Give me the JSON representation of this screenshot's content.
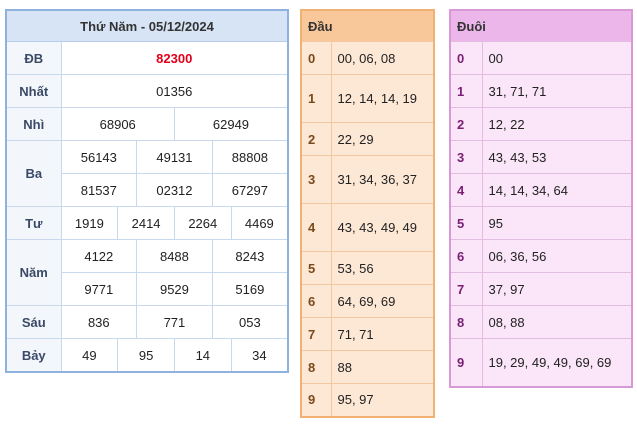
{
  "results": {
    "title": "Thứ Năm - 05/12/2024",
    "rows": [
      {
        "label": "ĐB",
        "lines": [
          [
            "82300"
          ]
        ]
      },
      {
        "label": "Nhất",
        "lines": [
          [
            "01356"
          ]
        ]
      },
      {
        "label": "Nhì",
        "lines": [
          [
            "68906",
            "62949"
          ]
        ]
      },
      {
        "label": "Ba",
        "lines": [
          [
            "56143",
            "49131",
            "88808"
          ],
          [
            "81537",
            "02312",
            "67297"
          ]
        ]
      },
      {
        "label": "Tư",
        "lines": [
          [
            "1919",
            "2414",
            "2264",
            "4469"
          ]
        ]
      },
      {
        "label": "Năm",
        "lines": [
          [
            "4122",
            "8488",
            "8243"
          ],
          [
            "9771",
            "9529",
            "5169"
          ]
        ]
      },
      {
        "label": "Sáu",
        "lines": [
          [
            "836",
            "771",
            "053"
          ]
        ]
      },
      {
        "label": "Bảy",
        "lines": [
          [
            "49",
            "95",
            "14",
            "34"
          ]
        ]
      }
    ]
  },
  "dau": {
    "header": "Đầu",
    "rows": [
      {
        "idx": "0",
        "val": "00, 06, 08"
      },
      {
        "idx": "1",
        "val": "12, 14, 14, 19"
      },
      {
        "idx": "2",
        "val": "22, 29"
      },
      {
        "idx": "3",
        "val": "31, 34, 36, 37"
      },
      {
        "idx": "4",
        "val": "43, 43, 49, 49"
      },
      {
        "idx": "5",
        "val": "53, 56"
      },
      {
        "idx": "6",
        "val": "64, 69, 69"
      },
      {
        "idx": "7",
        "val": "71, 71"
      },
      {
        "idx": "8",
        "val": "88"
      },
      {
        "idx": "9",
        "val": "95, 97"
      }
    ]
  },
  "duoi": {
    "header": "Đuôi",
    "rows": [
      {
        "idx": "0",
        "val": "00"
      },
      {
        "idx": "1",
        "val": "31, 71, 71"
      },
      {
        "idx": "2",
        "val": "12, 22"
      },
      {
        "idx": "3",
        "val": "43, 43, 53"
      },
      {
        "idx": "4",
        "val": "14, 14, 34, 64"
      },
      {
        "idx": "5",
        "val": "95"
      },
      {
        "idx": "6",
        "val": "06, 36, 56"
      },
      {
        "idx": "7",
        "val": "37, 97"
      },
      {
        "idx": "8",
        "val": "08, 88"
      },
      {
        "idx": "9",
        "val": "19, 29, 49, 49, 69, 69"
      }
    ]
  }
}
